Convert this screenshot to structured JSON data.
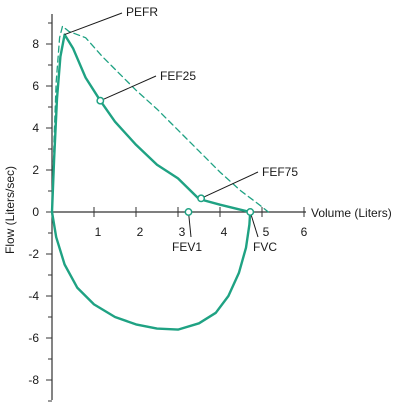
{
  "chart_data": {
    "type": "line",
    "xlabel": "Volume (Liters)",
    "ylabel": "Flow (Liters/sec)",
    "xlim": [
      0,
      6
    ],
    "ylim": [
      -9,
      9
    ],
    "x_ticks": [
      1,
      2,
      3,
      4,
      5,
      6
    ],
    "y_ticks": [
      8,
      6,
      4,
      2,
      0,
      -2,
      -4,
      -6,
      -8
    ],
    "grid": false,
    "colors": {
      "curve": "#1fa283",
      "axis": "#333333",
      "text": "#1a1a1a",
      "marker_fill": "#ffffff"
    },
    "series": [
      {
        "style": "solid",
        "points": [
          [
            0,
            0
          ],
          [
            0.05,
            2.5
          ],
          [
            0.12,
            5.4
          ],
          [
            0.2,
            7.4
          ],
          [
            0.3,
            8.45
          ],
          [
            0.5,
            7.8
          ],
          [
            0.8,
            6.4
          ],
          [
            1.15,
            5.3
          ],
          [
            1.5,
            4.3
          ],
          [
            2.0,
            3.2
          ],
          [
            2.5,
            2.25
          ],
          [
            3.0,
            1.6
          ],
          [
            3.5,
            0.62
          ],
          [
            4.0,
            0.35
          ],
          [
            4.4,
            0.15
          ],
          [
            4.72,
            0
          ]
        ]
      },
      {
        "style": "solid",
        "points": [
          [
            4.72,
            0
          ],
          [
            4.7,
            -0.6
          ],
          [
            4.62,
            -1.7
          ],
          [
            4.45,
            -2.9
          ],
          [
            4.2,
            -4.0
          ],
          [
            3.9,
            -4.8
          ],
          [
            3.5,
            -5.3
          ],
          [
            3.0,
            -5.6
          ],
          [
            2.5,
            -5.55
          ],
          [
            2.0,
            -5.35
          ],
          [
            1.5,
            -5.0
          ],
          [
            1.0,
            -4.4
          ],
          [
            0.6,
            -3.6
          ],
          [
            0.3,
            -2.5
          ],
          [
            0.1,
            -1.2
          ],
          [
            0,
            0
          ]
        ]
      },
      {
        "style": "dashed",
        "points": [
          [
            0,
            0
          ],
          [
            0.05,
            3.5
          ],
          [
            0.1,
            6.2
          ],
          [
            0.18,
            8.3
          ],
          [
            0.25,
            8.85
          ],
          [
            0.4,
            8.6
          ],
          [
            0.8,
            8.3
          ],
          [
            1.2,
            7.4
          ],
          [
            1.6,
            6.6
          ],
          [
            2.0,
            5.8
          ],
          [
            2.5,
            4.9
          ],
          [
            3.0,
            3.9
          ],
          [
            3.5,
            2.9
          ],
          [
            4.0,
            1.9
          ],
          [
            4.5,
            1.0
          ],
          [
            4.9,
            0.4
          ],
          [
            5.15,
            0
          ]
        ]
      }
    ],
    "annotations": [
      {
        "label": "PEFR",
        "point": [
          0.3,
          8.45
        ]
      },
      {
        "label": "FEF25",
        "point": [
          1.15,
          5.3
        ]
      },
      {
        "label": "FEF75",
        "point": [
          3.55,
          0.65
        ]
      },
      {
        "label": "FEV1",
        "point": [
          3.25,
          0
        ]
      },
      {
        "label": "FVC",
        "point": [
          4.72,
          0
        ]
      }
    ]
  }
}
